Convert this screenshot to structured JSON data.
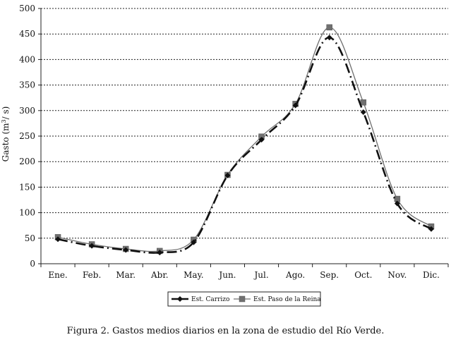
{
  "chart_data": {
    "type": "line",
    "title": "",
    "caption": "Figura 2. Gastos medios diarios en la zona de estudio del Río Verde.",
    "ylabel_prefix": "Gasto (m",
    "ylabel_sup": "3",
    "ylabel_suffix": "/ s)",
    "xlabel": "",
    "ylim": [
      0,
      500
    ],
    "yticks": [
      "0",
      "50",
      "100",
      "150",
      "200",
      "250",
      "300",
      "350",
      "400",
      "450",
      "500"
    ],
    "grid": "horizontal dotted",
    "legend_position": "bottom-center",
    "categories": [
      "Ene.",
      "Feb.",
      "Mar.",
      "Abr.",
      "May.",
      "Jun.",
      "Jul.",
      "Ago.",
      "Sep.",
      "Oct.",
      "Nov.",
      "Dic."
    ],
    "series": [
      {
        "name": "Est. Carrizo",
        "style": "dash-dot",
        "color": "#111111",
        "marker": "diamond",
        "values": [
          48,
          35,
          27,
          22,
          42,
          173,
          243,
          310,
          443,
          297,
          118,
          68
        ]
      },
      {
        "name": "Est. Paso de la Reina",
        "style": "solid",
        "color": "#707070",
        "marker": "square",
        "values": [
          52,
          38,
          29,
          25,
          47,
          174,
          249,
          313,
          463,
          316,
          127,
          73
        ]
      }
    ]
  }
}
